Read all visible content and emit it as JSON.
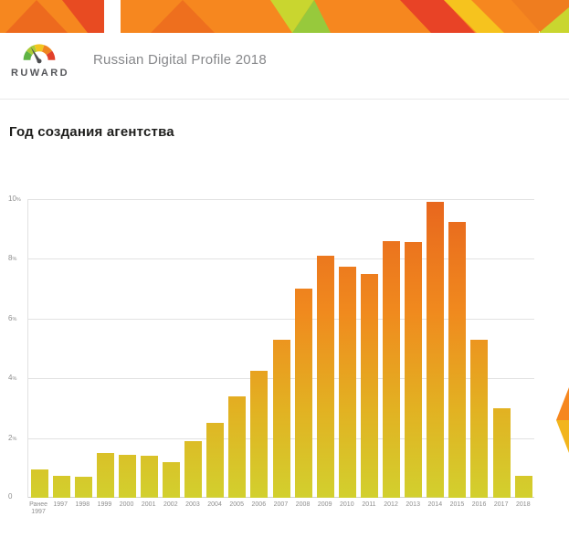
{
  "colors": {
    "accent_orange": "#f6871f",
    "accent_red": "#e84326",
    "accent_yellow": "#f6c31e",
    "accent_lime": "#c9d62f",
    "accent_green": "#8fc73e",
    "bar_top": "#e8661e",
    "bar_bottom": "#d2d02e",
    "grid": "#e2e2e2",
    "tick_text": "#8e8e8e"
  },
  "header": {
    "brand": "RUWARD",
    "title": "Russian Digital Profile 2018"
  },
  "section": {
    "heading": "Год создания агентства"
  },
  "chart_data": {
    "type": "bar",
    "title": "Год создания агентства",
    "categories": [
      "Ранее\n1997",
      "1997",
      "1998",
      "1999",
      "2000",
      "2001",
      "2002",
      "2003",
      "2004",
      "2005",
      "2006",
      "2007",
      "2008",
      "2009",
      "2010",
      "2011",
      "2012",
      "2013",
      "2014",
      "2015",
      "2016",
      "2017",
      "2018"
    ],
    "values": [
      0.95,
      0.75,
      0.7,
      1.5,
      1.45,
      1.4,
      1.2,
      1.9,
      2.5,
      3.4,
      4.25,
      5.3,
      7.0,
      8.1,
      7.75,
      7.5,
      8.6,
      8.55,
      9.9,
      9.25,
      5.3,
      3.0,
      0.75
    ],
    "unit": "%",
    "ylim": [
      0,
      10
    ],
    "yticks": [
      {
        "text": "10",
        "suffix": "%"
      },
      {
        "text": "8",
        "suffix": "%"
      },
      {
        "text": "6",
        "suffix": "%"
      },
      {
        "text": "4",
        "suffix": "%"
      },
      {
        "text": "2",
        "suffix": "%"
      },
      {
        "text": "0",
        "suffix": ""
      }
    ],
    "grid": true,
    "legend": false,
    "bar_gradient": [
      "#e8661e",
      "#f08a1e",
      "#e2b122",
      "#d2d02e"
    ]
  }
}
